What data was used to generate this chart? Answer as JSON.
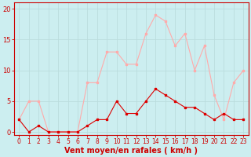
{
  "hours": [
    0,
    1,
    2,
    3,
    4,
    5,
    6,
    7,
    8,
    9,
    10,
    11,
    12,
    13,
    14,
    15,
    16,
    17,
    18,
    19,
    20,
    21,
    22,
    23
  ],
  "wind_avg": [
    2,
    0,
    1,
    0,
    0,
    0,
    0,
    1,
    2,
    2,
    5,
    3,
    3,
    5,
    7,
    6,
    5,
    4,
    4,
    3,
    2,
    3,
    2,
    2
  ],
  "wind_gust": [
    2,
    5,
    5,
    0,
    0,
    0,
    0,
    8,
    8,
    13,
    13,
    11,
    11,
    16,
    19,
    18,
    14,
    16,
    10,
    14,
    6,
    2,
    8,
    10
  ],
  "line_color_avg": "#dd0000",
  "line_color_gust": "#ffaaaa",
  "bg_color": "#cceef0",
  "grid_color": "#bbdddd",
  "xlabel": "Vent moyen/en rafales ( km/h )",
  "xlabel_color": "#cc0000",
  "yticks": [
    0,
    5,
    10,
    15,
    20
  ],
  "ylim": [
    -0.5,
    21
  ],
  "xlim": [
    -0.5,
    23.5
  ],
  "tick_color": "#cc0000",
  "spine_color": "#cc0000",
  "tick_fontsize": 6,
  "xlabel_fontsize": 7
}
